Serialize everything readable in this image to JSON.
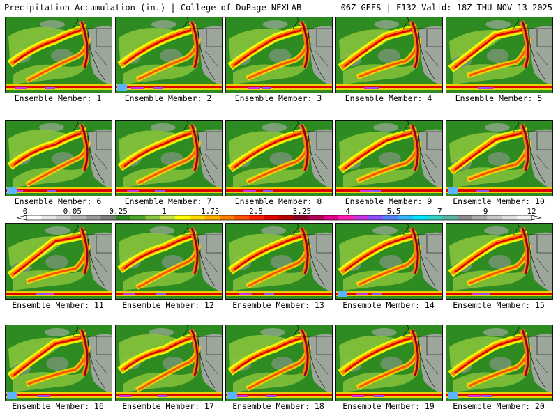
{
  "header": {
    "left": "Precipitation Accumulation (in.) | College of DuPage NEXLAB",
    "right": "06Z GEFS | F132 Valid: 18Z THU NOV 13 2025"
  },
  "member_label": "Ensemble Member:",
  "members": [
    1,
    2,
    3,
    4,
    5,
    6,
    7,
    8,
    9,
    10,
    11,
    12,
    13,
    14,
    15,
    16,
    17,
    18,
    19,
    20
  ],
  "colorbar": {
    "tick_labels": [
      "0",
      "0.05",
      "0.25",
      "1",
      "1.75",
      "2.5",
      "3.25",
      "4",
      "5.5",
      "7",
      "9",
      "12"
    ],
    "colors": [
      "#ffffff",
      "#e6e6e6",
      "#cfcfcf",
      "#b4b4b4",
      "#9a9a9a",
      "#7e7e7e",
      "#2e8b22",
      "#4fa52a",
      "#8bc63c",
      "#c6e04a",
      "#ffff00",
      "#ffd800",
      "#ffb000",
      "#ff8000",
      "#ff5000",
      "#ff1e00",
      "#e00000",
      "#b40000",
      "#8c0028",
      "#b4005a",
      "#e0008c",
      "#ff1eb4",
      "#c832e6",
      "#8c50ff",
      "#5a82ff",
      "#32b4ff",
      "#00e6ff",
      "#32d2c8",
      "#5ab4a0",
      "#8c8c8c",
      "#aaaaaa",
      "#c8c8c8",
      "#e0e0e0",
      "#f4f4f4"
    ]
  },
  "colors": {
    "background": "#ffffff",
    "land_base": "#2e8b22",
    "ocean_gray": "#9a9a9a",
    "heavy_red": "#e00000",
    "heavy_purple": "#8c0028",
    "yellow": "#ffff00",
    "orange": "#ff8000"
  }
}
